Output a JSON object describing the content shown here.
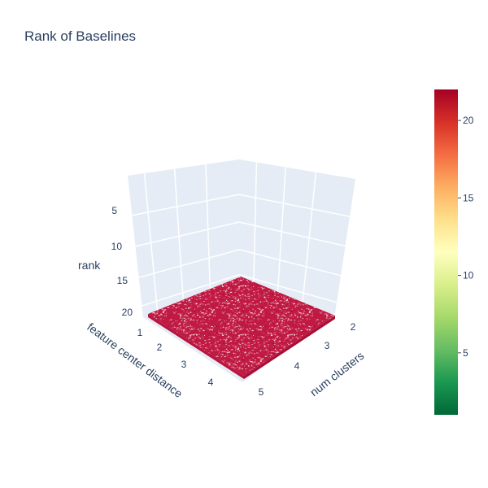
{
  "chart_data": {
    "type": "surface",
    "title": "Rank of Baselines",
    "axes": {
      "x": {
        "label": "num clusters",
        "range": [
          2,
          5
        ],
        "ticks": [
          "2",
          "3",
          "4",
          "5"
        ]
      },
      "y": {
        "label": "feature center distance",
        "range": [
          1,
          5
        ],
        "ticks": [
          "1",
          "2",
          "3",
          "4"
        ]
      },
      "z": {
        "label": "rank",
        "range": [
          22,
          1
        ],
        "reversed": true,
        "ticks": [
          "5",
          "10",
          "15",
          "20"
        ]
      }
    },
    "surface": {
      "approx_rank_level": 21,
      "appearance": "dense noisy surface near the maximum rank"
    },
    "colorbar": {
      "colorscale": "RdYlGn reversed",
      "range": [
        1,
        22
      ],
      "ticks": [
        "5",
        "10",
        "15",
        "20"
      ],
      "colors": [
        "#006837",
        "#1a9850",
        "#66bd63",
        "#a6d96a",
        "#d9ef8b",
        "#ffffbf",
        "#fee08b",
        "#fdae61",
        "#f46d43",
        "#d73027",
        "#a50026"
      ]
    },
    "grid": true
  }
}
